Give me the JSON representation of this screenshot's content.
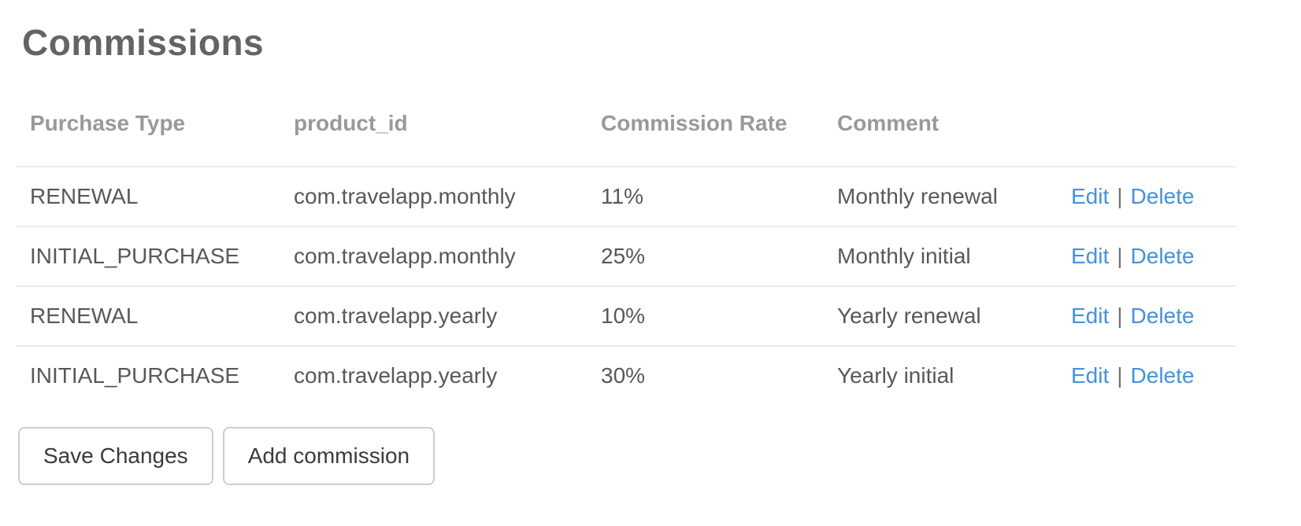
{
  "page": {
    "title": "Commissions"
  },
  "table": {
    "columns": [
      {
        "key": "purchase_type",
        "label": "Purchase Type"
      },
      {
        "key": "product_id",
        "label": "product_id"
      },
      {
        "key": "commission_rate",
        "label": "Commission Rate"
      },
      {
        "key": "comment",
        "label": "Comment"
      },
      {
        "key": "actions",
        "label": ""
      }
    ],
    "rows": [
      {
        "purchase_type": "RENEWAL",
        "product_id": "com.travelapp.monthly",
        "commission_rate": "11%",
        "comment": "Monthly renewal"
      },
      {
        "purchase_type": "INITIAL_PURCHASE",
        "product_id": "com.travelapp.monthly",
        "commission_rate": "25%",
        "comment": "Monthly initial"
      },
      {
        "purchase_type": "RENEWAL",
        "product_id": "com.travelapp.yearly",
        "commission_rate": "10%",
        "comment": "Yearly renewal"
      },
      {
        "purchase_type": "INITIAL_PURCHASE",
        "product_id": "com.travelapp.yearly",
        "commission_rate": "30%",
        "comment": "Yearly initial"
      }
    ],
    "actions": {
      "edit_label": "Edit",
      "separator": "|",
      "delete_label": "Delete"
    }
  },
  "buttons": {
    "save_label": "Save Changes",
    "add_label": "Add commission"
  },
  "colors": {
    "link_blue": "#4492dc",
    "title_gray": "#646466",
    "header_gray": "#98999b",
    "cell_gray": "#58585a",
    "row_border": "#ececec",
    "button_border": "#cdcdcd"
  }
}
